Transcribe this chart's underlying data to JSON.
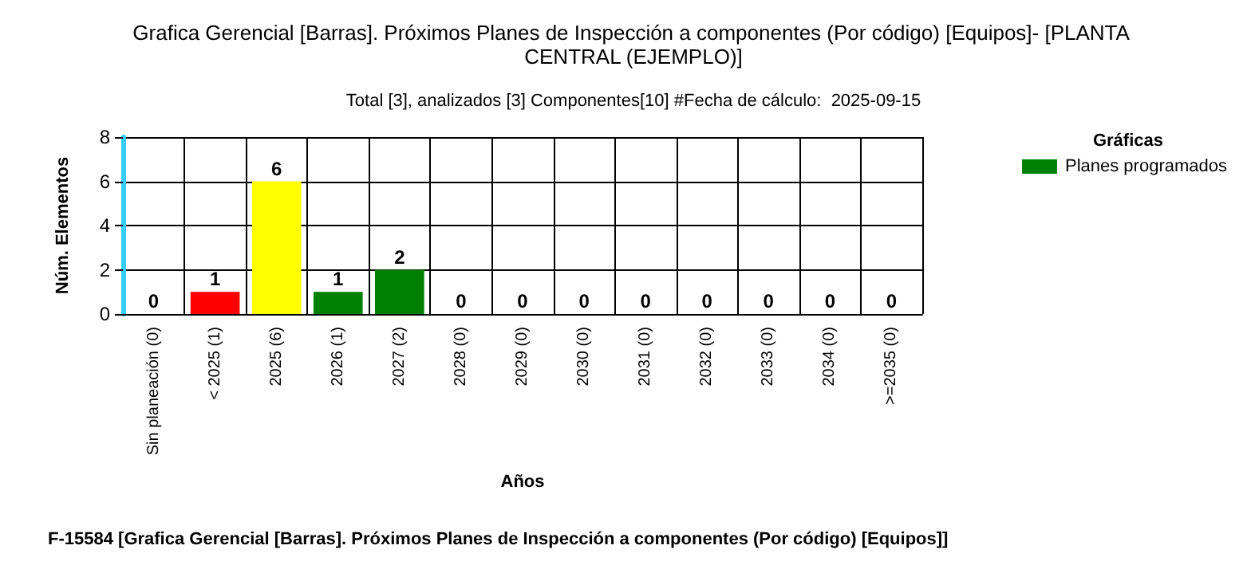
{
  "chart_data": {
    "type": "bar",
    "title": "Grafica Gerencial [Barras]. Próximos Planes de Inspección a componentes (Por código) [Equipos]- [PLANTA CENTRAL (EJEMPLO)]",
    "subtitle": "Total [3], analizados [3] Componentes[10] #Fecha de cálculo:  2025-09-15",
    "xlabel": "Años",
    "ylabel": "Núm. Elementos",
    "legend_title": "Gráficas",
    "categories": [
      "Sin planeación (0)",
      "< 2025 (1)",
      "2025 (6)",
      "2026 (1)",
      "2027 (2)",
      "2028 (0)",
      "2029 (0)",
      "2030 (0)",
      "2031 (0)",
      "2032 (0)",
      "2033 (0)",
      "2034 (0)",
      ">=2035 (0)"
    ],
    "series": [
      {
        "name": "Planes programados",
        "color": "#008000",
        "values": [
          0,
          1,
          6,
          1,
          2,
          0,
          0,
          0,
          0,
          0,
          0,
          0,
          0
        ],
        "colors": [
          "#008000",
          "#ff0000",
          "#ffff00",
          "#008000",
          "#008000",
          "#008000",
          "#008000",
          "#008000",
          "#008000",
          "#008000",
          "#008000",
          "#008000",
          "#008000"
        ]
      }
    ],
    "ylim": [
      0,
      8
    ],
    "yticks": [
      0,
      2,
      4,
      6,
      8
    ],
    "grid": true,
    "legend": "top right",
    "data_labels": true,
    "annotations": [
      "F-15584 [Grafica Gerencial [Barras]. Próximos Planes de Inspección a componentes (Por código) [Equipos]]"
    ]
  }
}
